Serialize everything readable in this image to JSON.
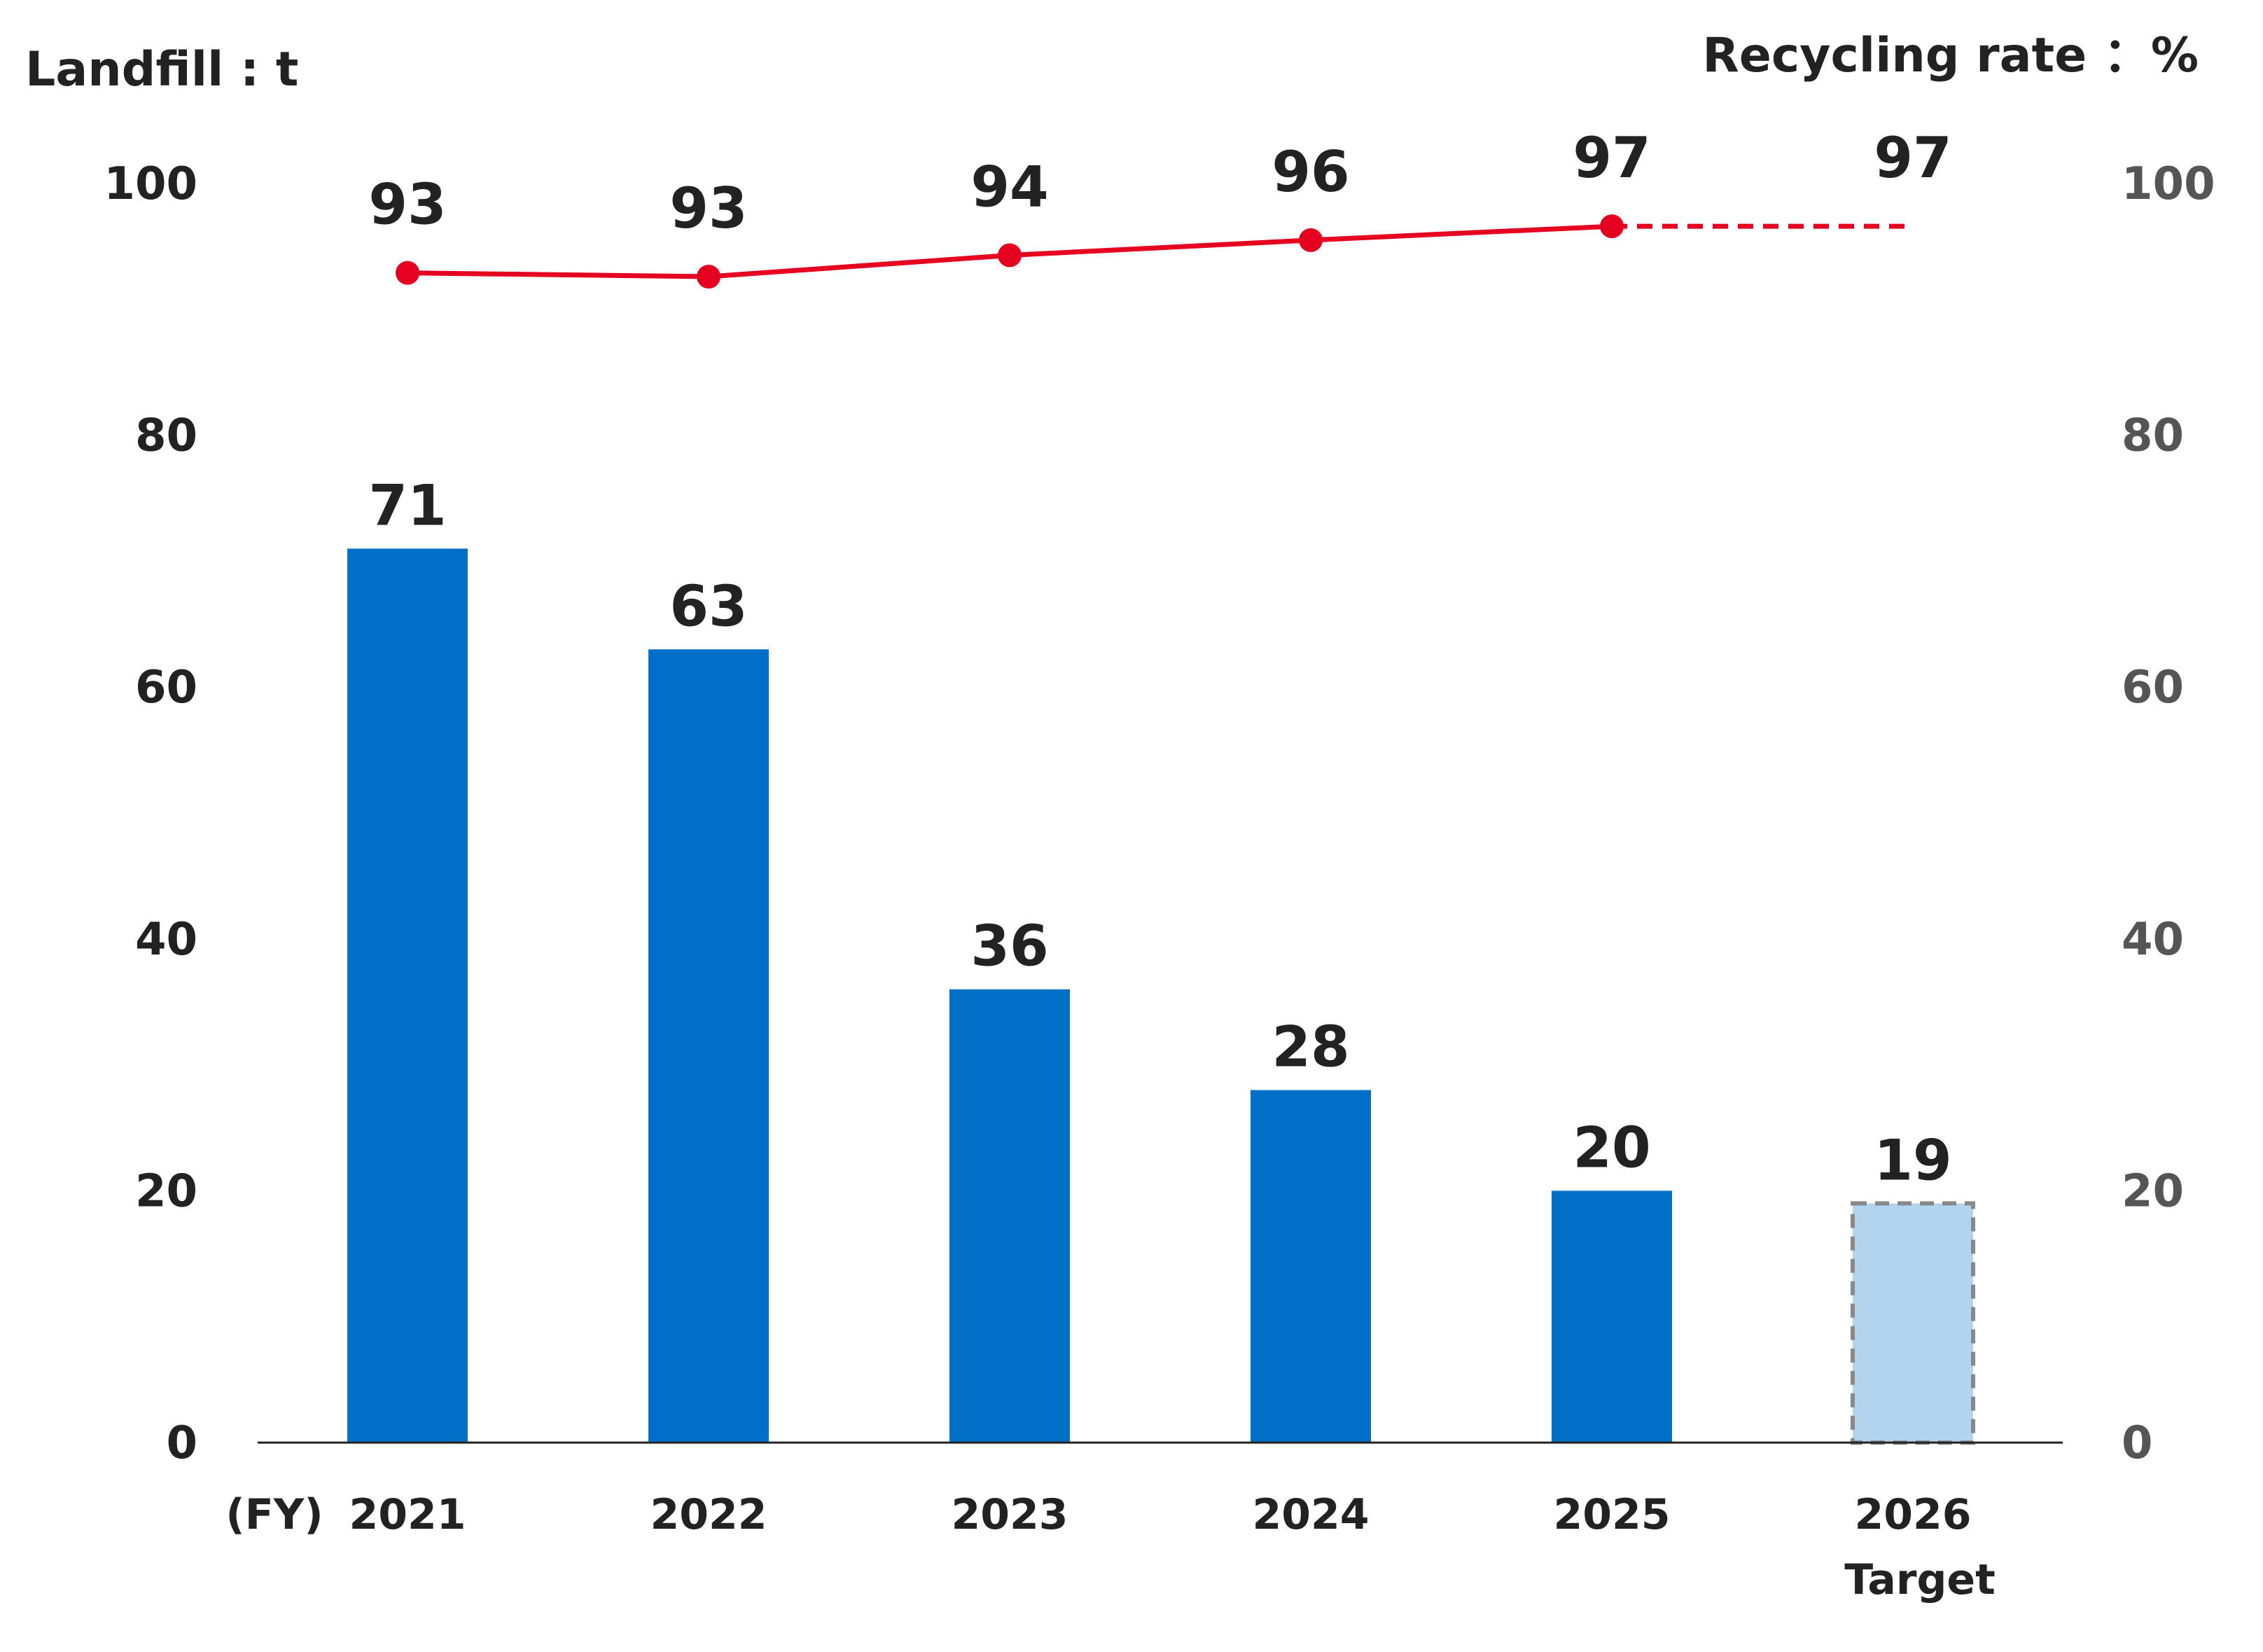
{
  "chart_data": {
    "type": "bar",
    "categories": [
      "2021",
      "2022",
      "2023",
      "2024",
      "2025",
      "2026"
    ],
    "category_sublabels": [
      "",
      "",
      "",
      "",
      "",
      "Target"
    ],
    "x_prefix": "(FY)",
    "left_axis": {
      "label": "Landfill : t",
      "ylim": [
        0,
        100
      ],
      "ticks": [
        0,
        20,
        40,
        60,
        80,
        100
      ]
    },
    "right_axis": {
      "label": "Recycling rate ：%",
      "ylim": [
        0,
        100
      ],
      "ticks": [
        0,
        20,
        40,
        60,
        80,
        100
      ]
    },
    "series": [
      {
        "type": "bar",
        "axis": "left",
        "values": [
          71,
          63,
          36,
          28,
          20,
          19
        ],
        "labels": [
          "71",
          "63",
          "36",
          "28",
          "20",
          "19"
        ],
        "target_index": 5
      },
      {
        "type": "line",
        "axis": "right",
        "values": [
          92.9,
          92.6,
          94.3,
          95.5,
          96.6,
          96.6
        ],
        "labels": [
          "93",
          "93",
          "94",
          "96",
          "97",
          "97"
        ],
        "target_index": 5
      }
    ],
    "grid": false,
    "legend": "none"
  },
  "colors": {
    "bar": "#0070c6",
    "bar_target": "#b3d4ee",
    "bar_target_border": "#888888",
    "line": "#e60020",
    "axis": "#222222"
  }
}
